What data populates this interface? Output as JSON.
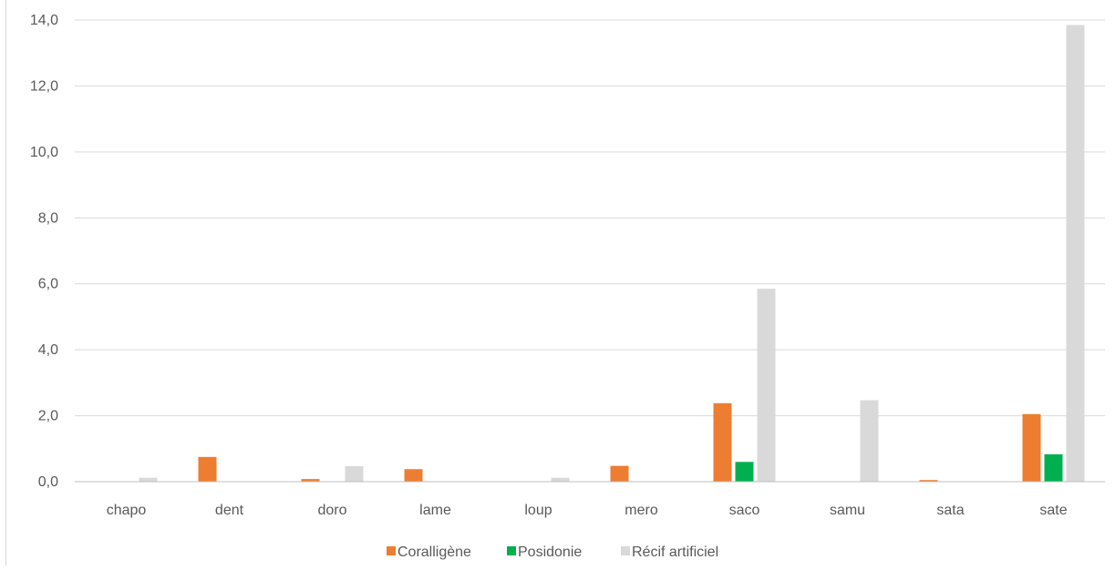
{
  "chart_data": {
    "type": "bar",
    "title": "",
    "xlabel": "",
    "ylabel": "",
    "ylim": [
      0,
      14
    ],
    "yticks": [
      "0,0",
      "2,0",
      "4,0",
      "6,0",
      "8,0",
      "10,0",
      "12,0",
      "14,0"
    ],
    "grid": true,
    "legend_position": "bottom",
    "categories": [
      "chapo",
      "dent",
      "doro",
      "lame",
      "loup",
      "mero",
      "saco",
      "samu",
      "sata",
      "sate"
    ],
    "series": [
      {
        "name": "Coralligène",
        "color": "#ED7D31",
        "values": [
          0,
          0.75,
          0.08,
          0.38,
          0,
          0.48,
          2.38,
          0,
          0.05,
          2.05
        ]
      },
      {
        "name": "Posidonie",
        "color": "#00B050",
        "values": [
          0,
          0,
          0,
          0,
          0,
          0,
          0.6,
          0,
          0,
          0.83
        ]
      },
      {
        "name": "Récif artificiel",
        "color": "#D9D9D9",
        "values": [
          0.12,
          0,
          0.47,
          0,
          0.12,
          0,
          5.85,
          2.47,
          0,
          13.85
        ]
      }
    ]
  }
}
